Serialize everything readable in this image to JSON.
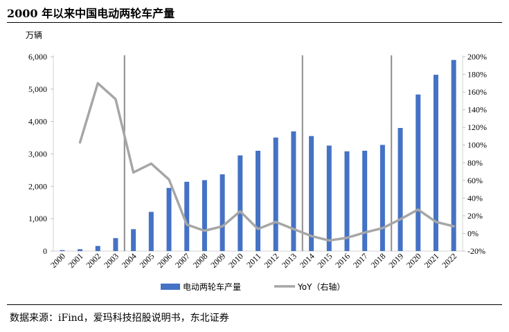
{
  "title": "2000 年以来中国电动两轮车产量",
  "source": "数据来源：iFind，爱玛科技招股说明书，东北证券",
  "chart_data": {
    "type": "bar",
    "y_unit_label": "万辆",
    "categories": [
      "2000",
      "2001",
      "2002",
      "2003",
      "2004",
      "2005",
      "2006",
      "2007",
      "2008",
      "2009",
      "2010",
      "2011",
      "2012",
      "2013",
      "2014",
      "2015",
      "2016",
      "2017",
      "2018",
      "2019",
      "2020",
      "2021",
      "2022"
    ],
    "series": [
      {
        "name": "电动两轮车产量",
        "kind": "bar",
        "axis": "left",
        "color": "#4472C4",
        "values": [
          29,
          58,
          158,
          400,
          676,
          1210,
          1950,
          2140,
          2190,
          2369,
          2954,
          3096,
          3505,
          3695,
          3551,
          3257,
          3080,
          3097,
          3278,
          3800,
          4834,
          5443,
          5900
        ]
      },
      {
        "name": "YoY（右轴）",
        "kind": "line",
        "axis": "right",
        "color": "#A6A6A6",
        "values": [
          null,
          103,
          170,
          152,
          69,
          79,
          61,
          10,
          3,
          8,
          25,
          5,
          13,
          5,
          -3,
          -8,
          -5,
          1,
          6,
          16,
          27,
          13,
          8
        ]
      }
    ],
    "y_left": {
      "min": 0,
      "max": 6000,
      "step": 1000,
      "tick_labels": [
        "0",
        "1,000",
        "2,000",
        "3,000",
        "4,000",
        "5,000",
        "6,000"
      ]
    },
    "y_right": {
      "min": -20,
      "max": 200,
      "step": 20,
      "tick_labels": [
        "-20%",
        "0%",
        "20%",
        "40%",
        "60%",
        "80%",
        "100%",
        "120%",
        "140%",
        "160%",
        "180%",
        "200%"
      ]
    },
    "vertical_lines_after": [
      "2003",
      "2013",
      "2018"
    ],
    "legend_position": "bottom",
    "grid": false
  }
}
